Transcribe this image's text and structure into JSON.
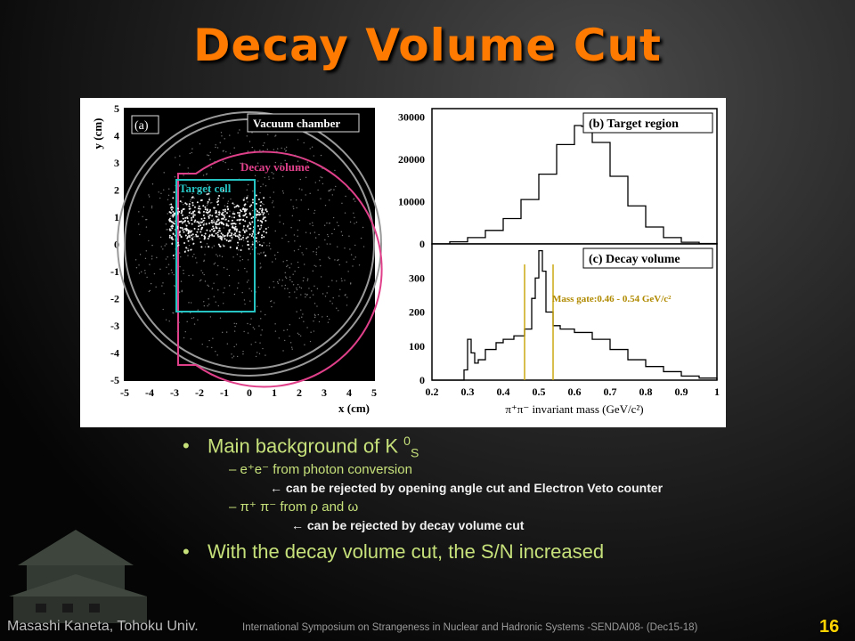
{
  "slide": {
    "title": "Decay Volume Cut",
    "page_number": "16",
    "author": "Masashi Kaneta, Tohoku Univ.",
    "conference": "International Symposium on Strangeness in Nuclear and Hadronic Systems -SENDAI08- (Dec15-18)",
    "bullets": [
      {
        "text": "Main background of K",
        "sup": "0",
        "sub": "S"
      },
      {
        "text": "With the decay volume cut, the S/N increased"
      }
    ],
    "subitems": [
      {
        "text": "– e⁺e⁻ from photon conversion",
        "note": "← can be rejected by opening angle cut and Electron Veto counter"
      },
      {
        "text": "– π⁺ π⁻ from ρ and ω",
        "note": "← can be rejected by decay volume cut"
      }
    ]
  },
  "chart_data": [
    {
      "type": "scatter",
      "panel": "(a)",
      "xlabel": "x (cm)",
      "ylabel": "y (cm)",
      "xlim": [
        -5,
        5
      ],
      "ylim": [
        -5,
        5
      ],
      "xticks": [
        "-5",
        "-4",
        "-3",
        "-2",
        "-1",
        "0",
        "1",
        "2",
        "3",
        "4",
        "5"
      ],
      "yticks": [
        "5",
        "4",
        "3",
        "2",
        "1",
        "0",
        "-1",
        "-2",
        "-3",
        "-4",
        "-5"
      ],
      "annotations": [
        "Vacuum chamber",
        "Decay volume",
        "Target cell"
      ],
      "colors": {
        "decay_volume": "#e0408a",
        "target_cell": "#27c4c4",
        "vacuum_chamber": "#888888"
      }
    },
    {
      "type": "line",
      "panel": "(b) Target region",
      "ylim": [
        0,
        32000
      ],
      "yticks": [
        "30000",
        "20000",
        "10000",
        "0"
      ],
      "x": [
        0.2,
        0.25,
        0.3,
        0.35,
        0.4,
        0.45,
        0.5,
        0.55,
        0.6,
        0.62,
        0.65,
        0.7,
        0.75,
        0.8,
        0.85,
        0.9,
        0.95,
        1.0
      ],
      "y": [
        0,
        500,
        1500,
        3200,
        6000,
        10500,
        16500,
        23500,
        28000,
        27800,
        24000,
        16000,
        9000,
        4000,
        1500,
        400,
        100,
        0
      ]
    },
    {
      "type": "line",
      "panel": "(c) Decay volume",
      "xlabel": "π⁺π⁻ invariant mass (GeV/c²)",
      "xlim": [
        0.2,
        1.0
      ],
      "ylim": [
        0,
        400
      ],
      "yticks": [
        "300",
        "200",
        "100",
        "0"
      ],
      "xticks": [
        "0.2",
        "0.3",
        "0.4",
        "0.5",
        "0.6",
        "0.7",
        "0.8",
        "0.9",
        "1"
      ],
      "annotation": "Mass gate:0.46 - 0.54 GeV/c²",
      "mass_gate": [
        0.46,
        0.54
      ],
      "x": [
        0.2,
        0.28,
        0.29,
        0.3,
        0.31,
        0.32,
        0.33,
        0.35,
        0.38,
        0.4,
        0.43,
        0.46,
        0.48,
        0.49,
        0.5,
        0.51,
        0.52,
        0.54,
        0.56,
        0.6,
        0.65,
        0.7,
        0.75,
        0.8,
        0.85,
        0.9,
        0.95,
        1.0
      ],
      "y": [
        0,
        0,
        30,
        120,
        80,
        50,
        60,
        90,
        110,
        120,
        130,
        150,
        240,
        300,
        380,
        320,
        200,
        160,
        150,
        140,
        120,
        90,
        60,
        40,
        25,
        12,
        6,
        0
      ]
    }
  ]
}
